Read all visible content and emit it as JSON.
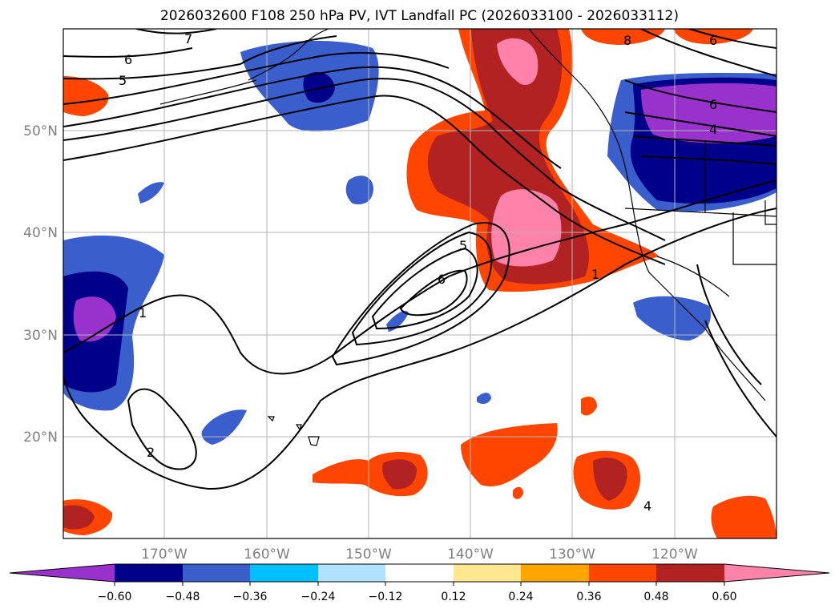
{
  "title": "2026032600 F108 250 hPa PV, IVT Landfall PC (2026033100 - 2026033112)",
  "lat_labels": [
    "50°N",
    "40°N",
    "30°N",
    "20°N"
  ],
  "lon_labels": [
    "170°W",
    "160°W",
    "150°W",
    "140°W",
    "130°W",
    "120°W"
  ],
  "contour_labels": [
    "7",
    "6",
    "5",
    "5",
    "6",
    "1",
    "1",
    "2",
    "8",
    "6",
    "4",
    "4",
    "6"
  ],
  "colorbar": {
    "tick_labels": [
      "−0.60",
      "−0.48",
      "−0.36",
      "−0.24",
      "−0.12",
      "0.12",
      "0.24",
      "0.36",
      "0.48",
      "0.60"
    ],
    "colors": [
      "#9932cc",
      "#00008b",
      "#3a5fcd",
      "#00bfff",
      "#b0e2ff",
      "#ffffff",
      "#ffe78f",
      "#ffa500",
      "#ff4500",
      "#b22222",
      "#ff82ab"
    ]
  },
  "palette": {
    "neg_1": "#9932cc",
    "neg_2": "#00008b",
    "neg_3": "#3a5fcd",
    "neg_4": "#00bfff",
    "neg_5": "#b0e2ff",
    "pos_1": "#ffe78f",
    "pos_2": "#ffa500",
    "pos_3": "#ff4500",
    "pos_4": "#b22222",
    "pos_5": "#ff82ab"
  }
}
